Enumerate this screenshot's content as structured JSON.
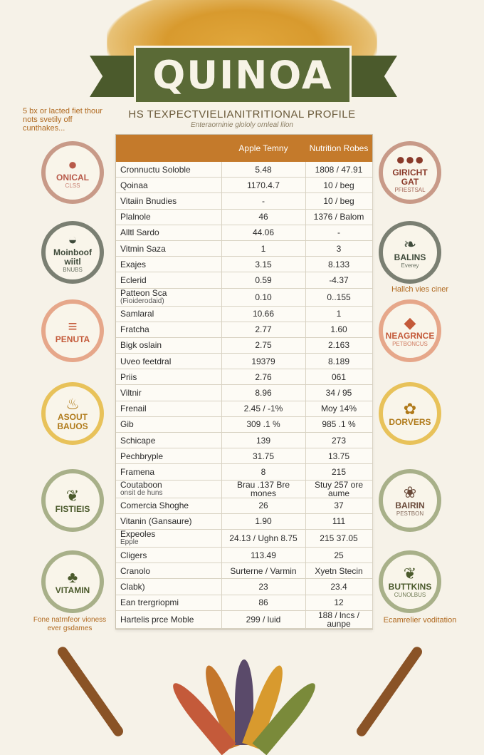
{
  "title": "QUINOA",
  "subtitle": "HS TEXPECTVIELIANITRITIONAL PROFILE",
  "subtitle_small": "Enteraorninie glololy ornleal lilon",
  "top_note": "5 bx or lacted fiet thour nots svetily off cunthakes...",
  "left_note": "Fone natrnfeor vioness ever gsdames",
  "right_note_1": "Hallch vies ciner",
  "right_note_2": "Ecamrelier voditation",
  "colors": {
    "banner": "#5a6a36",
    "table_header": "#c47a2b",
    "accent_orange": "#b0691f",
    "background": "#f6f2e8"
  },
  "badges_left": [
    {
      "label": "ONICAL",
      "sub": "CLSS",
      "icon": "tomato-icon",
      "glyph": "●",
      "color": "#b85a4a",
      "ring": "#c89a88"
    },
    {
      "label": "Moinboof wiitl",
      "sub": "BNUBS",
      "icon": "bowl-icon",
      "glyph": "◒",
      "color": "#3e4a3a",
      "ring": "#7a7f72"
    },
    {
      "label": "PENUTA",
      "sub": "",
      "icon": "burger-icon",
      "glyph": "≡",
      "color": "#c45a3a",
      "ring": "#e6a78a"
    },
    {
      "label": "ASOUT BAUOS",
      "sub": "",
      "icon": "pot-icon",
      "glyph": "♨",
      "color": "#b07a1a",
      "ring": "#e8c25a"
    },
    {
      "label": "FISTIEIS",
      "sub": "",
      "icon": "leaf-icon",
      "glyph": "❦",
      "color": "#4b5a2c",
      "ring": "#a8b089"
    },
    {
      "label": "VITAMIN",
      "sub": "",
      "icon": "sprout-icon",
      "glyph": "♣",
      "color": "#4b5a2c",
      "ring": "#a8b089"
    }
  ],
  "badges_right": [
    {
      "label": "GIRICHT GAT",
      "sub": "PFIESTSAL",
      "icon": "berries-icon",
      "glyph": "●●●",
      "color": "#8a3a2a",
      "ring": "#c89a88"
    },
    {
      "label": "BALINS",
      "sub": "Everey",
      "icon": "herb-icon",
      "glyph": "❧",
      "color": "#3e4a3a",
      "ring": "#7a7f72"
    },
    {
      "label": "NEAGRNCE",
      "sub": "PETBONCUS",
      "icon": "seed-icon",
      "glyph": "◆",
      "color": "#c45a3a",
      "ring": "#e6a78a"
    },
    {
      "label": "DORVERS",
      "sub": "",
      "icon": "flower-icon",
      "glyph": "✿",
      "color": "#b07a1a",
      "ring": "#e8c25a"
    },
    {
      "label": "BAIRIN",
      "sub": "PESTBON",
      "icon": "salad-icon",
      "glyph": "❀",
      "color": "#6a4a3a",
      "ring": "#a8b089"
    },
    {
      "label": "BUTTKINS",
      "sub": "CUNOLBUS",
      "icon": "branch-icon",
      "glyph": "❦",
      "color": "#4b5a2c",
      "ring": "#a8b089"
    }
  ],
  "table": {
    "headers": [
      "",
      "Apple Temny",
      "Nutrition Robes"
    ],
    "rows": [
      {
        "name": "Cronnuctu Soloble",
        "sub": "",
        "a": "5.48",
        "b": "1808 / 47.91"
      },
      {
        "name": "Qoinaa",
        "sub": "",
        "a": "1170.4.7",
        "b": "10 / beg"
      },
      {
        "name": "Vitaiin Bnudies",
        "sub": "",
        "a": "-",
        "b": "10 / beg"
      },
      {
        "name": "Plalnole",
        "sub": "",
        "a": "46",
        "b": "1376 / Balom"
      },
      {
        "name": "Alltl Sardo",
        "sub": "",
        "a": "44.06",
        "b": "-"
      },
      {
        "name": "Vitmin Saza",
        "sub": "",
        "a": "1",
        "b": "3"
      },
      {
        "name": "Exajes",
        "sub": "",
        "a": "3.15",
        "b": "8.133"
      },
      {
        "name": "Eclerid",
        "sub": "",
        "a": "0.59",
        "b": "-4.37"
      },
      {
        "name": "Patteon Sca",
        "sub": "(Fioiderodaid)",
        "a": "0.10",
        "b": "0..155"
      },
      {
        "name": "Samlaral",
        "sub": "",
        "a": "10.66",
        "b": "1"
      },
      {
        "name": "Fratcha",
        "sub": "",
        "a": "2.77",
        "b": "1.60"
      },
      {
        "name": "Bigk oslain",
        "sub": "",
        "a": "2.75",
        "b": "2.163"
      },
      {
        "name": "Uveo feetdral",
        "sub": "",
        "a": "19379",
        "b": "8.189"
      },
      {
        "name": "Priis",
        "sub": "",
        "a": "2.76",
        "b": "061"
      },
      {
        "name": "Viltnir",
        "sub": "",
        "a": "8.96",
        "b": "34 / 95"
      },
      {
        "name": "Frenail",
        "sub": "",
        "a": "2.45 / -1%",
        "b": "Moy 14%"
      },
      {
        "name": "Gib",
        "sub": "",
        "a": "309 .1 %",
        "b": "985 .1 %"
      },
      {
        "name": "Schicape",
        "sub": "",
        "a": "139",
        "b": "273"
      },
      {
        "name": "Pechbryple",
        "sub": "",
        "a": "31.75",
        "b": "13.75"
      },
      {
        "name": "Framena",
        "sub": "",
        "a": "8",
        "b": "215"
      },
      {
        "name": "Coutaboon",
        "sub": "onsit de huns",
        "a": "Brau .137 Bre mones",
        "b": "Stuy 257 ore aume"
      },
      {
        "name": "Comercia Shoghe",
        "sub": "",
        "a": "26",
        "b": "37"
      },
      {
        "name": "Vitanin (Gansaure)",
        "sub": "",
        "a": "1.90",
        "b": "111"
      },
      {
        "name": "Expeoles",
        "sub": "Epple",
        "a": "24.13 / Ughn 8.75",
        "b": "215 37.05"
      },
      {
        "name": "Cligers",
        "sub": "",
        "a": "113.49",
        "b": "25"
      },
      {
        "name": "Cranolo",
        "sub": "",
        "a": "Surterne / Varmin",
        "b": "Xyetn Stecin"
      },
      {
        "name": "Clabk)",
        "sub": "",
        "a": "23",
        "b": "23.4"
      },
      {
        "name": "Ean trergriopmi",
        "sub": "",
        "a": "86",
        "b": "12"
      },
      {
        "name": "Hartelis prce Moble",
        "sub": "",
        "a": "299 / luid",
        "b": "188 / lncs / aunpe"
      }
    ]
  }
}
